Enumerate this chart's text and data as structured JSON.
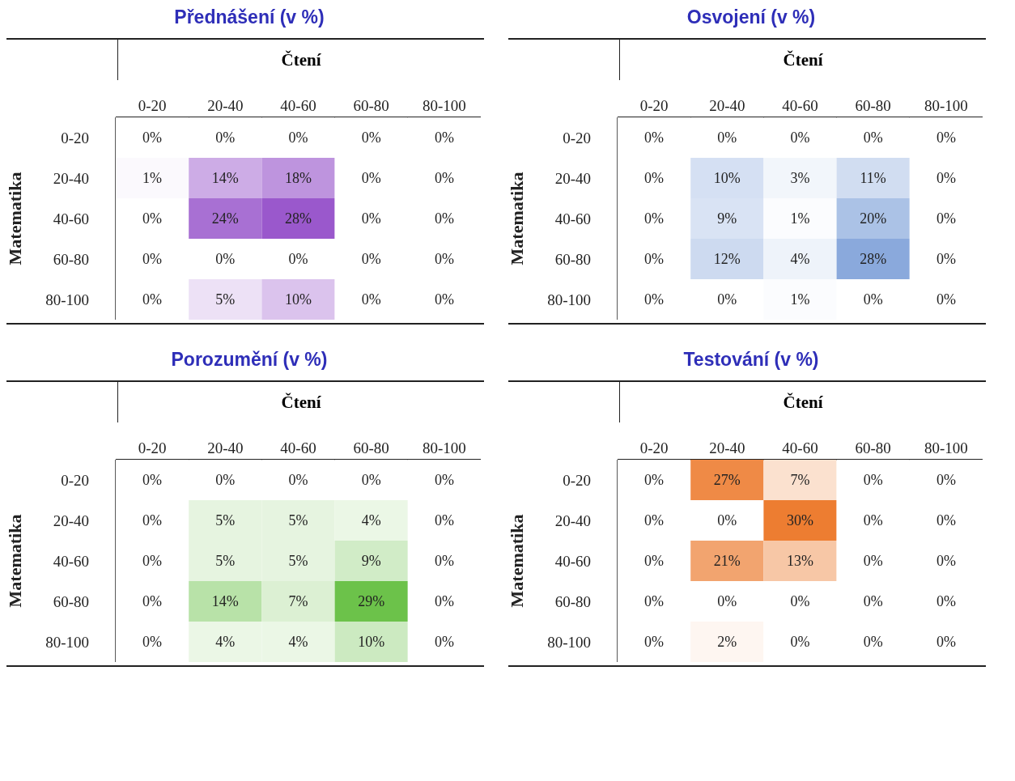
{
  "chart_data": [
    {
      "type": "heatmap",
      "title": "Přednášení (v %)",
      "xlabel": "Čtení",
      "ylabel": "Matematika",
      "color": "#9a58cc",
      "categories": [
        "0-20",
        "20-40",
        "40-60",
        "60-80",
        "80-100"
      ],
      "y_categories": [
        "0-20",
        "20-40",
        "40-60",
        "60-80",
        "80-100"
      ],
      "cells": [
        [
          0,
          0,
          0,
          0,
          0
        ],
        [
          1,
          14,
          18,
          0,
          0
        ],
        [
          0,
          24,
          28,
          0,
          0
        ],
        [
          0,
          0,
          0,
          0,
          0
        ],
        [
          0,
          5,
          10,
          0,
          0
        ]
      ],
      "cell_labels": [
        [
          "0%",
          "0%",
          "0%",
          "0%",
          "0%"
        ],
        [
          "1%",
          "14%",
          "18%",
          "0%",
          "0%"
        ],
        [
          "0%",
          "24%",
          "28%",
          "0%",
          "0%"
        ],
        [
          "0%",
          "0%",
          "0%",
          "0%",
          "0%"
        ],
        [
          "0%",
          "5%",
          "10%",
          "0%",
          "0%"
        ]
      ]
    },
    {
      "type": "heatmap",
      "title": "Osvojení (v %)",
      "xlabel": "Čtení",
      "ylabel": "Matematika",
      "color": "#8aa9dc",
      "categories": [
        "0-20",
        "20-40",
        "40-60",
        "60-80",
        "80-100"
      ],
      "y_categories": [
        "0-20",
        "20-40",
        "40-60",
        "60-80",
        "80-100"
      ],
      "cells": [
        [
          0,
          0,
          0,
          0,
          0
        ],
        [
          0,
          10,
          3,
          11,
          0
        ],
        [
          0,
          9,
          1,
          20,
          0
        ],
        [
          0,
          12,
          4,
          28,
          0
        ],
        [
          0,
          0,
          1,
          0,
          0
        ]
      ],
      "cell_labels": [
        [
          "0%",
          "0%",
          "0%",
          "0%",
          "0%"
        ],
        [
          "0%",
          "10%",
          "3%",
          "11%",
          "0%"
        ],
        [
          "0%",
          "9%",
          "1%",
          "20%",
          "0%"
        ],
        [
          "0%",
          "12%",
          "4%",
          "28%",
          "0%"
        ],
        [
          "0%",
          "0%",
          "1%",
          "0%",
          "0%"
        ]
      ]
    },
    {
      "type": "heatmap",
      "title": "Porozumění (v %)",
      "xlabel": "Čtení",
      "ylabel": "Matematika",
      "color": "#6cc24a",
      "categories": [
        "0-20",
        "20-40",
        "40-60",
        "60-80",
        "80-100"
      ],
      "y_categories": [
        "0-20",
        "20-40",
        "40-60",
        "60-80",
        "80-100"
      ],
      "cells": [
        [
          0,
          0,
          0,
          0,
          0
        ],
        [
          0,
          5,
          5,
          4,
          0
        ],
        [
          0,
          5,
          5,
          9,
          0
        ],
        [
          0,
          14,
          7,
          29,
          0
        ],
        [
          0,
          4,
          4,
          10,
          0
        ]
      ],
      "cell_labels": [
        [
          "0%",
          "0%",
          "0%",
          "0%",
          "0%"
        ],
        [
          "0%",
          "5%",
          "5%",
          "4%",
          "0%"
        ],
        [
          "0%",
          "5%",
          "5%",
          "9%",
          "0%"
        ],
        [
          "0%",
          "14%",
          "7%",
          "29%",
          "0%"
        ],
        [
          "0%",
          "4%",
          "4%",
          "10%",
          "0%"
        ]
      ]
    },
    {
      "type": "heatmap",
      "title": "Testování (v %)",
      "xlabel": "Čtení",
      "ylabel": "Matematika",
      "color": "#ed7d31",
      "categories": [
        "0-20",
        "20-40",
        "40-60",
        "60-80",
        "80-100"
      ],
      "y_categories": [
        "0-20",
        "20-40",
        "40-60",
        "60-80",
        "80-100"
      ],
      "cells": [
        [
          0,
          27,
          7,
          0,
          0
        ],
        [
          0,
          0,
          30,
          0,
          0
        ],
        [
          0,
          21,
          13,
          0,
          0
        ],
        [
          0,
          0,
          0,
          0,
          0
        ],
        [
          0,
          2,
          0,
          0,
          0
        ]
      ],
      "cell_labels": [
        [
          "0%",
          "27%",
          "7%",
          "0%",
          "0%"
        ],
        [
          "0%",
          "0%",
          "30%",
          "0%",
          "0%"
        ],
        [
          "0%",
          "21%",
          "13%",
          "0%",
          "0%"
        ],
        [
          "0%",
          "0%",
          "0%",
          "0%",
          "0%"
        ],
        [
          "0%",
          "2%",
          "0%",
          "0%",
          "0%"
        ]
      ]
    }
  ]
}
